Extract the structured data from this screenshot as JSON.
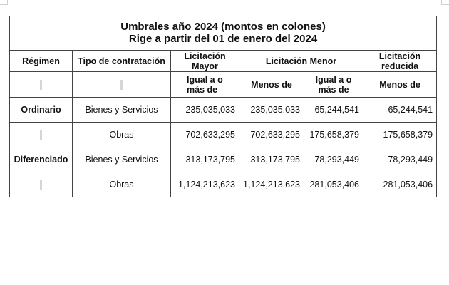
{
  "title": {
    "line1": "Umbrales año 2024 (montos en colones)",
    "line2": "Rige a partir del 01 de enero del 2024"
  },
  "headers": {
    "regimen": "Régimen",
    "tipo": "Tipo de contratación",
    "mayor": "Licitación Mayor",
    "menor": "Licitación Menor",
    "reducida": "Licitación reducida"
  },
  "subheaders": {
    "mayor": "Igual a o más de",
    "menor_menos": "Menos de",
    "menor_igual": "Igual a o más de",
    "reducida": "Menos de"
  },
  "rows": [
    {
      "regimen": "Ordinario",
      "tipo": "Bienes y Servicios",
      "mayor": "235,035,033",
      "menor_menos": "235,035,033",
      "menor_igual": "65,244,541",
      "reducida": "65,244,541"
    },
    {
      "regimen": "",
      "tipo": "Obras",
      "mayor": "702,633,295",
      "menor_menos": "702,633,295",
      "menor_igual": "175,658,379",
      "reducida": "175,658,379"
    },
    {
      "regimen": "Diferenciado",
      "tipo": "Bienes y Servicios",
      "mayor": "313,173,795",
      "menor_menos": "313,173,795",
      "menor_igual": "78,293,449",
      "reducida": "78,293,449"
    },
    {
      "regimen": "",
      "tipo": "Obras",
      "mayor": "1,124,213,623",
      "menor_menos": "1,124,213,623",
      "menor_igual": "281,053,406",
      "reducida": "281,053,406"
    }
  ]
}
